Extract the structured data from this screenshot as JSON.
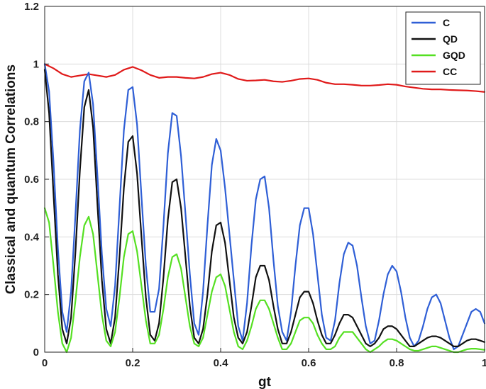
{
  "chart_data": {
    "type": "line",
    "xlabel": "gt",
    "ylabel": "Classical and quantum Correlations",
    "xlim": [
      0,
      1
    ],
    "ylim": [
      0,
      1.2
    ],
    "xticks": [
      "0",
      "0.2",
      "0.4",
      "0.6",
      "0.8",
      "1"
    ],
    "yticks": [
      "0",
      "0.2",
      "0.4",
      "0.6",
      "0.8",
      "1",
      "1.2"
    ],
    "grid": true,
    "legend_position": "top-right",
    "series": [
      {
        "name": "C",
        "color": "#2f5fd6",
        "x": [
          0,
          0.01,
          0.02,
          0.03,
          0.04,
          0.05,
          0.06,
          0.07,
          0.08,
          0.09,
          0.1,
          0.11,
          0.12,
          0.13,
          0.14,
          0.15,
          0.16,
          0.17,
          0.18,
          0.19,
          0.2,
          0.21,
          0.22,
          0.23,
          0.24,
          0.25,
          0.26,
          0.27,
          0.28,
          0.29,
          0.3,
          0.31,
          0.32,
          0.33,
          0.34,
          0.35,
          0.36,
          0.37,
          0.38,
          0.39,
          0.4,
          0.41,
          0.42,
          0.43,
          0.44,
          0.45,
          0.46,
          0.47,
          0.48,
          0.49,
          0.5,
          0.51,
          0.52,
          0.53,
          0.54,
          0.55,
          0.56,
          0.57,
          0.58,
          0.59,
          0.6,
          0.61,
          0.62,
          0.63,
          0.64,
          0.65,
          0.66,
          0.67,
          0.68,
          0.69,
          0.7,
          0.71,
          0.72,
          0.73,
          0.74,
          0.75,
          0.76,
          0.77,
          0.78,
          0.79,
          0.8,
          0.81,
          0.82,
          0.83,
          0.84,
          0.85,
          0.86,
          0.87,
          0.88,
          0.89,
          0.9,
          0.91,
          0.92,
          0.93,
          0.94,
          0.95,
          0.96,
          0.97,
          0.98,
          0.99,
          1
        ],
        "y": [
          1.0,
          0.905,
          0.66,
          0.36,
          0.14,
          0.07,
          0.21,
          0.48,
          0.77,
          0.94,
          0.97,
          0.86,
          0.61,
          0.34,
          0.15,
          0.09,
          0.23,
          0.5,
          0.77,
          0.91,
          0.92,
          0.79,
          0.54,
          0.3,
          0.14,
          0.14,
          0.22,
          0.44,
          0.69,
          0.83,
          0.82,
          0.68,
          0.48,
          0.27,
          0.1,
          0.06,
          0.21,
          0.44,
          0.65,
          0.74,
          0.7,
          0.57,
          0.41,
          0.25,
          0.09,
          0.04,
          0.17,
          0.37,
          0.53,
          0.6,
          0.61,
          0.5,
          0.32,
          0.16,
          0.07,
          0.04,
          0.14,
          0.3,
          0.44,
          0.5,
          0.5,
          0.41,
          0.27,
          0.13,
          0.05,
          0.04,
          0.11,
          0.24,
          0.34,
          0.38,
          0.37,
          0.3,
          0.19,
          0.09,
          0.03,
          0.04,
          0.11,
          0.2,
          0.27,
          0.3,
          0.28,
          0.21,
          0.12,
          0.05,
          0.02,
          0.04,
          0.09,
          0.15,
          0.19,
          0.2,
          0.17,
          0.11,
          0.05,
          0.01,
          0.02,
          0.06,
          0.1,
          0.14,
          0.15,
          0.14,
          0.1
        ]
      },
      {
        "name": "QD",
        "color": "#111111",
        "x": [
          0,
          0.01,
          0.02,
          0.03,
          0.04,
          0.05,
          0.06,
          0.07,
          0.08,
          0.09,
          0.1,
          0.11,
          0.12,
          0.13,
          0.14,
          0.15,
          0.16,
          0.17,
          0.18,
          0.19,
          0.2,
          0.21,
          0.22,
          0.23,
          0.24,
          0.25,
          0.26,
          0.27,
          0.28,
          0.29,
          0.3,
          0.31,
          0.32,
          0.33,
          0.34,
          0.35,
          0.36,
          0.37,
          0.38,
          0.39,
          0.4,
          0.41,
          0.42,
          0.43,
          0.44,
          0.45,
          0.46,
          0.47,
          0.48,
          0.49,
          0.5,
          0.51,
          0.52,
          0.53,
          0.54,
          0.55,
          0.56,
          0.57,
          0.58,
          0.59,
          0.6,
          0.61,
          0.62,
          0.63,
          0.64,
          0.65,
          0.66,
          0.67,
          0.68,
          0.69,
          0.7,
          0.71,
          0.72,
          0.73,
          0.74,
          0.75,
          0.76,
          0.77,
          0.78,
          0.79,
          0.8,
          0.81,
          0.82,
          0.83,
          0.84,
          0.85,
          0.86,
          0.87,
          0.88,
          0.89,
          0.9,
          0.91,
          0.92,
          0.93,
          0.94,
          0.95,
          0.96,
          0.97,
          0.98,
          0.99,
          1
        ],
        "y": [
          0.98,
          0.83,
          0.55,
          0.27,
          0.08,
          0.03,
          0.12,
          0.35,
          0.63,
          0.85,
          0.91,
          0.78,
          0.51,
          0.25,
          0.08,
          0.03,
          0.12,
          0.33,
          0.57,
          0.73,
          0.75,
          0.62,
          0.4,
          0.19,
          0.06,
          0.04,
          0.1,
          0.26,
          0.46,
          0.59,
          0.6,
          0.5,
          0.33,
          0.16,
          0.05,
          0.03,
          0.08,
          0.2,
          0.35,
          0.44,
          0.45,
          0.38,
          0.25,
          0.12,
          0.05,
          0.03,
          0.07,
          0.16,
          0.26,
          0.3,
          0.3,
          0.25,
          0.16,
          0.08,
          0.03,
          0.03,
          0.07,
          0.13,
          0.19,
          0.21,
          0.21,
          0.17,
          0.11,
          0.06,
          0.03,
          0.03,
          0.06,
          0.1,
          0.13,
          0.13,
          0.12,
          0.09,
          0.06,
          0.03,
          0.02,
          0.03,
          0.05,
          0.08,
          0.09,
          0.09,
          0.08,
          0.06,
          0.04,
          0.02,
          0.02,
          0.03,
          0.04,
          0.05,
          0.055,
          0.055,
          0.05,
          0.04,
          0.03,
          0.02,
          0.02,
          0.03,
          0.04,
          0.045,
          0.045,
          0.04,
          0.035
        ]
      },
      {
        "name": "GQD",
        "color": "#55e022",
        "x": [
          0,
          0.01,
          0.02,
          0.03,
          0.04,
          0.05,
          0.06,
          0.07,
          0.08,
          0.09,
          0.1,
          0.11,
          0.12,
          0.13,
          0.14,
          0.15,
          0.16,
          0.17,
          0.18,
          0.19,
          0.2,
          0.21,
          0.22,
          0.23,
          0.24,
          0.25,
          0.26,
          0.27,
          0.28,
          0.29,
          0.3,
          0.31,
          0.32,
          0.33,
          0.34,
          0.35,
          0.36,
          0.37,
          0.38,
          0.39,
          0.4,
          0.41,
          0.42,
          0.43,
          0.44,
          0.45,
          0.46,
          0.47,
          0.48,
          0.49,
          0.5,
          0.51,
          0.52,
          0.53,
          0.54,
          0.55,
          0.56,
          0.57,
          0.58,
          0.59,
          0.6,
          0.61,
          0.62,
          0.63,
          0.64,
          0.65,
          0.66,
          0.67,
          0.68,
          0.69,
          0.7,
          0.71,
          0.72,
          0.73,
          0.74,
          0.75,
          0.76,
          0.77,
          0.78,
          0.79,
          0.8,
          0.81,
          0.82,
          0.83,
          0.84,
          0.85,
          0.86,
          0.87,
          0.88,
          0.89,
          0.9,
          0.91,
          0.92,
          0.93,
          0.94,
          0.95,
          0.96,
          0.97,
          0.98,
          0.99,
          1
        ],
        "y": [
          0.5,
          0.45,
          0.3,
          0.14,
          0.03,
          0.0,
          0.05,
          0.18,
          0.33,
          0.44,
          0.47,
          0.41,
          0.27,
          0.13,
          0.04,
          0.02,
          0.07,
          0.19,
          0.33,
          0.41,
          0.42,
          0.35,
          0.23,
          0.11,
          0.03,
          0.03,
          0.06,
          0.15,
          0.26,
          0.33,
          0.34,
          0.29,
          0.19,
          0.09,
          0.03,
          0.02,
          0.05,
          0.13,
          0.21,
          0.26,
          0.27,
          0.23,
          0.15,
          0.07,
          0.02,
          0.01,
          0.04,
          0.09,
          0.15,
          0.18,
          0.18,
          0.15,
          0.1,
          0.05,
          0.01,
          0.01,
          0.03,
          0.07,
          0.11,
          0.12,
          0.12,
          0.1,
          0.06,
          0.03,
          0.01,
          0.01,
          0.02,
          0.05,
          0.07,
          0.07,
          0.07,
          0.05,
          0.03,
          0.01,
          0.0,
          0.01,
          0.02,
          0.035,
          0.045,
          0.045,
          0.04,
          0.03,
          0.02,
          0.01,
          0.005,
          0.005,
          0.01,
          0.015,
          0.02,
          0.02,
          0.015,
          0.01,
          0.005,
          0.0,
          0.0,
          0.005,
          0.01,
          0.012,
          0.012,
          0.01,
          0.008
        ]
      },
      {
        "name": "CC",
        "color": "#e01a1a",
        "x": [
          0,
          0.02,
          0.04,
          0.06,
          0.08,
          0.1,
          0.12,
          0.14,
          0.16,
          0.18,
          0.2,
          0.22,
          0.24,
          0.26,
          0.28,
          0.3,
          0.32,
          0.34,
          0.36,
          0.38,
          0.4,
          0.42,
          0.44,
          0.46,
          0.48,
          0.5,
          0.52,
          0.54,
          0.56,
          0.58,
          0.6,
          0.62,
          0.64,
          0.66,
          0.68,
          0.7,
          0.72,
          0.74,
          0.76,
          0.78,
          0.8,
          0.82,
          0.84,
          0.86,
          0.88,
          0.9,
          0.92,
          0.94,
          0.96,
          0.98,
          1
        ],
        "y": [
          1.0,
          0.985,
          0.965,
          0.955,
          0.96,
          0.965,
          0.96,
          0.955,
          0.962,
          0.98,
          0.99,
          0.978,
          0.962,
          0.952,
          0.955,
          0.955,
          0.952,
          0.95,
          0.955,
          0.965,
          0.97,
          0.962,
          0.948,
          0.942,
          0.943,
          0.945,
          0.94,
          0.938,
          0.942,
          0.948,
          0.95,
          0.945,
          0.935,
          0.93,
          0.93,
          0.928,
          0.925,
          0.925,
          0.927,
          0.93,
          0.928,
          0.922,
          0.918,
          0.914,
          0.912,
          0.912,
          0.91,
          0.909,
          0.908,
          0.906,
          0.903
        ]
      }
    ]
  }
}
